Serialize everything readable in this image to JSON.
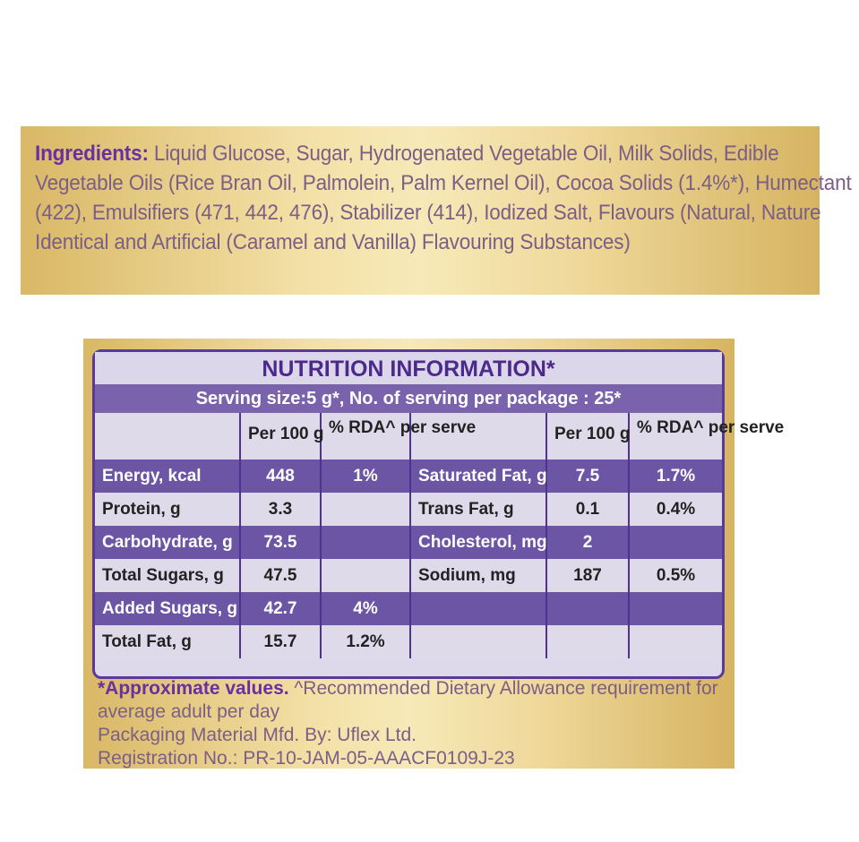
{
  "ingredients": {
    "label": "Ingredients:",
    "text": " Liquid Glucose, Sugar, Hydrogenated Vegetable Oil, Milk Solids, Edible Vegetable Oils (Rice Bran Oil, Palmolein, Palm Kernel Oil), Cocoa Solids (1.4%*), Humectant (422), Emulsifiers (471, 442, 476), Stabilizer (414), Iodized Salt, Flavours (Natural, Nature Identical and Artificial (Caramel and Vanilla) Flavouring Substances)"
  },
  "nutrition": {
    "title": "NUTRITION INFORMATION*",
    "serving": "Serving size:5 g*, No. of serving per package : 25*",
    "headers": [
      "",
      "Per 100 g",
      "% RDA^ per serve",
      "",
      "Per 100 g",
      "% RDA^ per serve"
    ],
    "rows": [
      [
        "Energy, kcal",
        "448",
        "1%",
        "Saturated Fat, g",
        "7.5",
        "1.7%"
      ],
      [
        "Protein, g",
        "3.3",
        "",
        "Trans Fat, g",
        "0.1",
        "0.4%"
      ],
      [
        "Carbohydrate, g",
        "73.5",
        "",
        "Cholesterol, mg",
        "2",
        ""
      ],
      [
        "Total Sugars, g",
        "47.5",
        "",
        "Sodium, mg",
        "187",
        "0.5%"
      ],
      [
        "Added Sugars, g",
        "42.7",
        "4%",
        "",
        "",
        ""
      ],
      [
        "Total Fat, g",
        "15.7",
        "1.2%",
        "",
        "",
        ""
      ]
    ]
  },
  "footer": {
    "approx": "*Approximate values.",
    "rda": " ^Recommended Dietary Allowance requirement for average adult per day",
    "packaging": "Packaging Material Mfd. By: Uflex Ltd.",
    "registration": "Registration No.: PR-10-JAM-05-AAACF0109J-23"
  },
  "colors": {
    "purple": "#5a3a98",
    "gold": "#efd89a"
  }
}
